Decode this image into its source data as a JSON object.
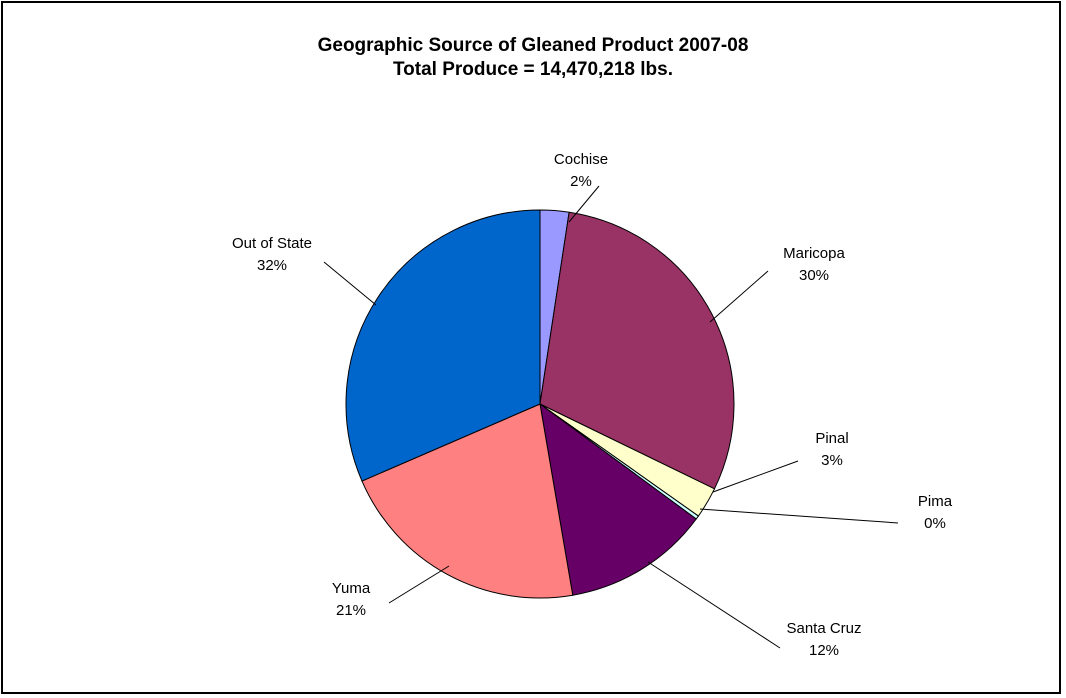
{
  "chart_data": {
    "type": "pie",
    "title": "Geographic Source of Gleaned Product 2007-08",
    "subtitle": "Total Produce = 14,470,218 lbs.",
    "slices": [
      {
        "label": "Cochise",
        "pct_label": "2%",
        "value": 2.4,
        "color": "#9999ff"
      },
      {
        "label": "Maricopa",
        "pct_label": "30%",
        "value": 29.8,
        "color": "#993366"
      },
      {
        "label": "Pinal",
        "pct_label": "3%",
        "value": 2.6,
        "color": "#ffffcc"
      },
      {
        "label": "Pima",
        "pct_label": "0%",
        "value": 0.3,
        "color": "#ccffff"
      },
      {
        "label": "Santa Cruz",
        "pct_label": "12%",
        "value": 12.2,
        "color": "#660066"
      },
      {
        "label": "Yuma",
        "pct_label": "21%",
        "value": 21.2,
        "color": "#ff8080"
      },
      {
        "label": "Out of State",
        "pct_label": "32%",
        "value": 31.5,
        "color": "#0066cc"
      }
    ]
  }
}
